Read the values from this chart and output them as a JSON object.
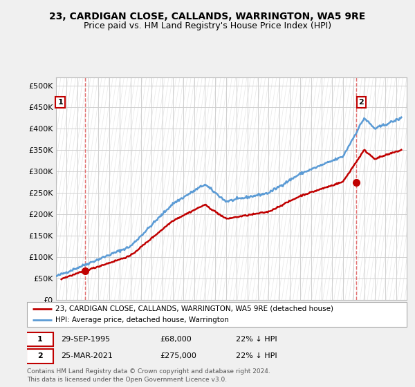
{
  "title": "23, CARDIGAN CLOSE, CALLANDS, WARRINGTON, WA5 9RE",
  "subtitle": "Price paid vs. HM Land Registry's House Price Index (HPI)",
  "legend_line1": "23, CARDIGAN CLOSE, CALLANDS, WARRINGTON, WA5 9RE (detached house)",
  "legend_line2": "HPI: Average price, detached house, Warrington",
  "footer": "Contains HM Land Registry data © Crown copyright and database right 2024.\nThis data is licensed under the Open Government Licence v3.0.",
  "ann1_date": "29-SEP-1995",
  "ann1_price": "£68,000",
  "ann1_hpi": "22% ↓ HPI",
  "ann2_date": "25-MAR-2021",
  "ann2_price": "£275,000",
  "ann2_hpi": "22% ↓ HPI",
  "sale1_x": 1995.75,
  "sale1_y": 68000,
  "sale2_x": 2021.23,
  "sale2_y": 275000,
  "ylim": [
    0,
    520000
  ],
  "xlim": [
    1993,
    2026
  ],
  "yticks": [
    0,
    50000,
    100000,
    150000,
    200000,
    250000,
    300000,
    350000,
    400000,
    450000,
    500000
  ],
  "ytick_labels": [
    "£0",
    "£50K",
    "£100K",
    "£150K",
    "£200K",
    "£250K",
    "£300K",
    "£350K",
    "£400K",
    "£450K",
    "£500K"
  ],
  "xticks": [
    1993,
    1994,
    1995,
    1996,
    1997,
    1998,
    1999,
    2000,
    2001,
    2002,
    2003,
    2004,
    2005,
    2006,
    2007,
    2008,
    2009,
    2010,
    2011,
    2012,
    2013,
    2014,
    2015,
    2016,
    2017,
    2018,
    2019,
    2020,
    2021,
    2022,
    2023,
    2024,
    2025
  ],
  "hpi_color": "#5b9bd5",
  "sale_color": "#c00000",
  "grid_color": "#d0d0d0",
  "bg_color": "#f0f0f0",
  "plot_bg": "#ffffff",
  "vline_color": "#e06060"
}
